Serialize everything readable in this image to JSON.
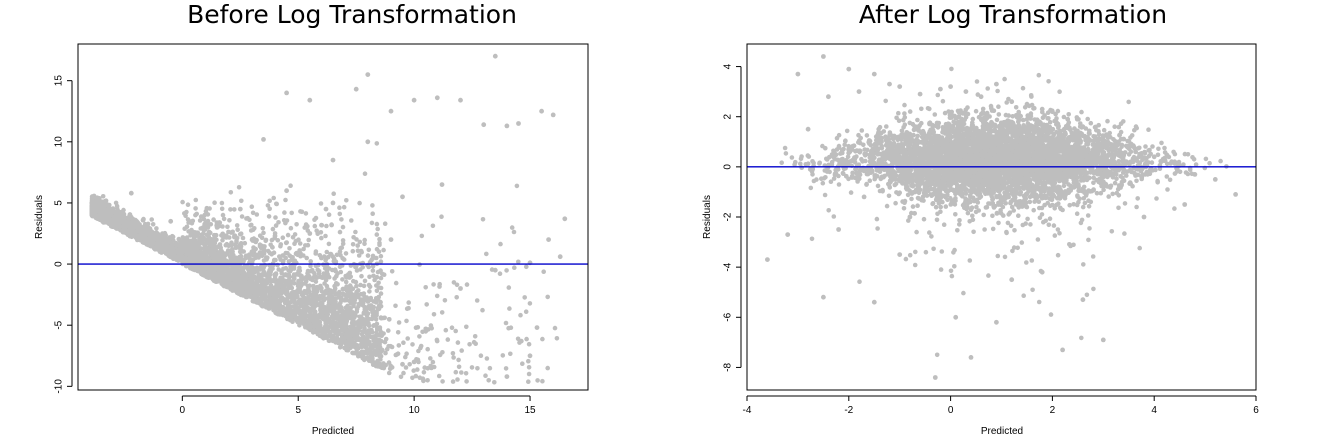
{
  "colors": {
    "points": "#bebebe",
    "ref_line": "#0000cc",
    "axis": "#000000"
  },
  "chart_data": [
    {
      "type": "scatter",
      "title": "Before Log Transformation",
      "xlabel": "Predicted",
      "ylabel": "Residuals",
      "xlim": [
        -4.5,
        17.5
      ],
      "ylim": [
        -10.3,
        18.0
      ],
      "xticks": [
        0,
        5,
        10,
        15
      ],
      "yticks": [
        -10,
        -5,
        0,
        5,
        10,
        15
      ],
      "reference_line_y": 0,
      "legend": "none",
      "grid": false,
      "series": [
        {
          "points_description": "residuals bounded below by a line of slope -1 from (-4, 4) sloping down, wedge widening with predicted value",
          "x": [
            -3.9,
            -3.5,
            -3.0,
            -2.5,
            -2.2,
            -1.5,
            -1.0,
            -0.5,
            0.0,
            0.5,
            1.0,
            1.5,
            2.0,
            2.5,
            3.0,
            3.5,
            4.0,
            4.5,
            5.0,
            5.5,
            6.0,
            6.5,
            7.0,
            7.5,
            8.0,
            8.5,
            9.0,
            9.5,
            10.0,
            11.0,
            12.0,
            13.0,
            13.5,
            14.0,
            14.5,
            15.0,
            15.5,
            16.0,
            16.5,
            3.0,
            4.5,
            5.5,
            6.5,
            7.2,
            7.8,
            9.0,
            11.2,
            12.0,
            13.5,
            15.3,
            15.8,
            8.0,
            9.5,
            10.5,
            2.0,
            3.2,
            4.0,
            5.0,
            6.0,
            7.0,
            8.5,
            10.0,
            1.0,
            2.5,
            6.2,
            14.0,
            15.0,
            16.3
          ],
          "y": [
            4.0,
            3.6,
            3.1,
            2.6,
            5.8,
            1.9,
            1.4,
            3.5,
            0.4,
            2.5,
            -0.9,
            3.0,
            -1.9,
            4.5,
            -2.7,
            10.2,
            -3.6,
            14.0,
            -4.4,
            13.4,
            -5.5,
            8.5,
            -6.0,
            14.3,
            15.5,
            -7.5,
            12.5,
            -8.2,
            13.4,
            13.6,
            13.4,
            11.4,
            17.0,
            11.3,
            11.5,
            -7.5,
            12.5,
            12.2,
            3.7,
            1.0,
            6.0,
            2.5,
            5.0,
            -3.0,
            -4.5,
            2.0,
            6.5,
            -2.0,
            -0.5,
            -5.2,
            2.0,
            10.0,
            5.5,
            -5.5,
            1.5,
            -1.2,
            2.3,
            -1.8,
            0.5,
            -2.5,
            -6.8,
            -8.0,
            0.2,
            1.0,
            4.5,
            -9.2,
            0.1,
            0.6
          ]
        }
      ]
    },
    {
      "type": "scatter",
      "title": "After Log Transformation",
      "xlabel": "Predicted",
      "ylabel": "Residuals",
      "xlim": [
        -4,
        6
      ],
      "ylim": [
        -8.9,
        4.9
      ],
      "xticks": [
        -4,
        -2,
        0,
        2,
        4,
        6
      ],
      "yticks": [
        -8,
        -6,
        -4,
        -2,
        0,
        2,
        4
      ],
      "reference_line_y": 0,
      "legend": "none",
      "grid": false,
      "series": [
        {
          "points_description": "dense elliptical cloud of residuals centered near 0 across predicted -3 to 5.5, long lower tail",
          "x": [
            -3.6,
            -3.2,
            -3.0,
            -2.8,
            -2.5,
            -2.4,
            -2.0,
            -1.8,
            -1.5,
            -1.2,
            -1.0,
            -0.6,
            -0.2,
            0.0,
            0.3,
            0.6,
            0.9,
            1.2,
            1.5,
            1.8,
            2.0,
            2.3,
            2.6,
            3.0,
            3.3,
            3.6,
            4.0,
            4.4,
            4.8,
            5.2,
            5.6,
            -2.5,
            -1.5,
            0.1,
            0.9,
            1.8,
            2.6,
            -0.3,
            0.4,
            -1.0,
            1.2,
            2.2,
            -2.2,
            3.8,
            4.6,
            -0.8,
            0.2,
            1.5,
            3.0,
            -1.7
          ],
          "y": [
            -3.7,
            -2.7,
            3.7,
            1.5,
            4.4,
            2.8,
            3.9,
            3.0,
            3.7,
            3.3,
            3.2,
            2.9,
            3.1,
            3.2,
            3.0,
            2.8,
            3.3,
            2.6,
            2.5,
            2.3,
            2.2,
            1.9,
            1.6,
            1.2,
            1.0,
            0.8,
            0.4,
            0.2,
            -0.3,
            -0.5,
            -1.1,
            -5.2,
            -5.4,
            -6.0,
            -6.2,
            -4.2,
            -5.3,
            -8.4,
            -7.6,
            -3.5,
            -4.5,
            -7.3,
            -2.5,
            -2.0,
            -1.5,
            -2.0,
            0.0,
            -0.5,
            -6.9,
            -1.2
          ]
        }
      ]
    }
  ]
}
